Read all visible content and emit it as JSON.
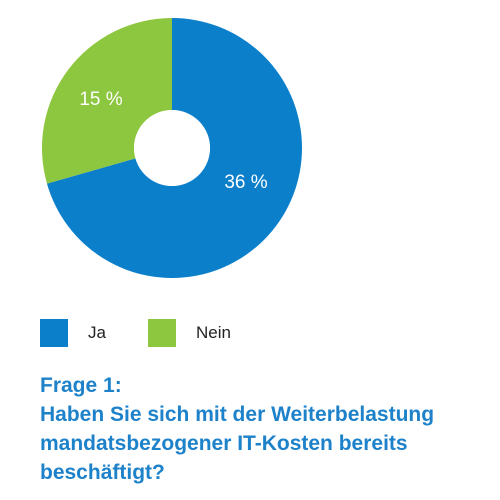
{
  "chart_data": {
    "type": "pie",
    "style": "donut",
    "categories": [
      "Ja",
      "Nein"
    ],
    "values": [
      36,
      15
    ],
    "data_labels": [
      "36 %",
      "15 %"
    ],
    "colors": [
      "#0C7FCB",
      "#8DC63F"
    ],
    "legend": {
      "placement": "bottom-left",
      "entries": [
        "Ja",
        "Nein"
      ]
    }
  },
  "question": {
    "label": "Frage 1:",
    "lines": [
      "Haben Sie sich mit der Weiterbelastung",
      "mandatsbezogener IT-Kosten bereits",
      "beschäftigt?"
    ]
  }
}
